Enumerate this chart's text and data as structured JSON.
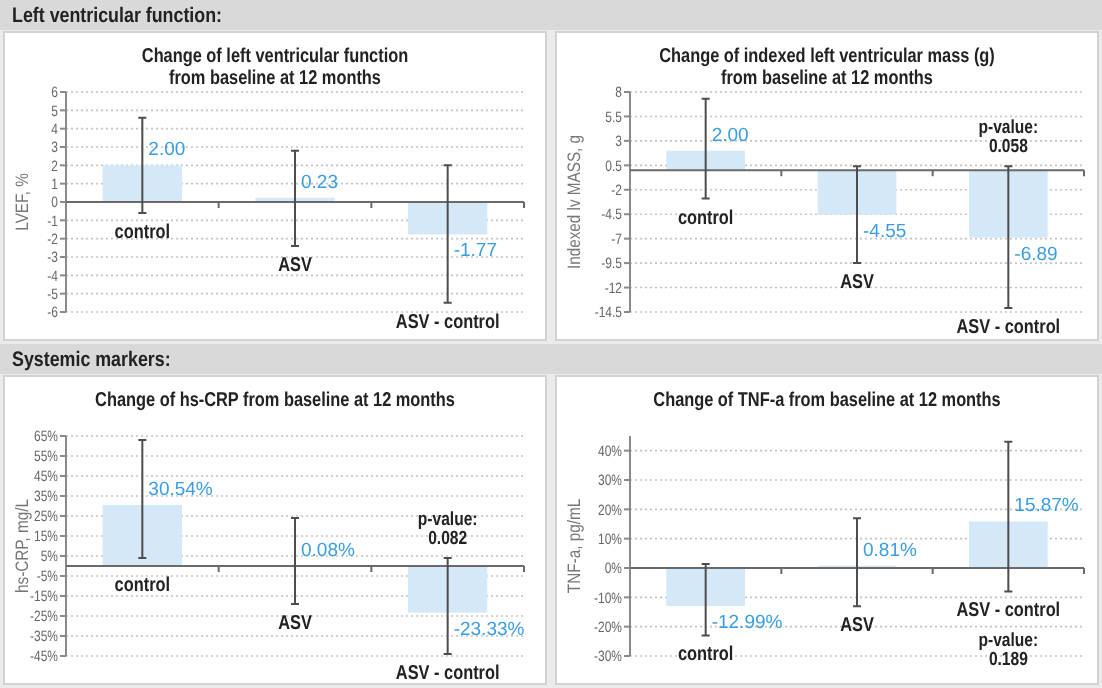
{
  "chart_data": [
    {
      "type": "other",
      "title": "Left ventricular function:"
    },
    {
      "type": "bar",
      "title": "Change of left ventricular function\nfrom baseline at 12 months",
      "ylabel": "LVEF, %",
      "categories": [
        "control",
        "ASV",
        "ASV - control"
      ],
      "values": [
        2.0,
        0.23,
        -1.77
      ],
      "value_labels": [
        "2.00",
        "0.23",
        "-1.77"
      ],
      "errors": [
        [
          -0.6,
          4.6
        ],
        [
          -2.4,
          2.8
        ],
        [
          -5.5,
          2.0
        ]
      ],
      "color": "#d5e8f8",
      "ylim": [
        -6,
        6
      ],
      "yticks": [
        6,
        5,
        4,
        3,
        2,
        1,
        0,
        -1,
        -2,
        -3,
        -4,
        -5,
        -6
      ],
      "grid": "y"
    },
    {
      "type": "bar",
      "title": "Change of indexed left ventricular mass (g)\nfrom baseline at 12 months",
      "ylabel": "Indexed lv MASS, g",
      "categories": [
        "control",
        "ASV",
        "ASV - control"
      ],
      "values": [
        2.0,
        -4.55,
        -6.89
      ],
      "value_labels": [
        "2.00",
        "-4.55",
        "-6.89"
      ],
      "errors": [
        [
          -2.9,
          7.3
        ],
        [
          -9.5,
          0.4
        ],
        [
          -14.1,
          0.4
        ]
      ],
      "color": "#d5e8f8",
      "ylim": [
        -14.5,
        8
      ],
      "yticks": [
        8,
        5.5,
        3,
        0.5,
        -2,
        -4.5,
        -7,
        -9.5,
        -12,
        -14.5
      ],
      "grid": "y",
      "annotations": [
        "p-value:\n0.058"
      ]
    },
    {
      "type": "other",
      "title": "Systemic markers:"
    },
    {
      "type": "bar",
      "title": "Change of hs-CRP from baseline at 12 months",
      "ylabel": "hs-CRP, mg/L",
      "categories": [
        "control",
        "ASV",
        "ASV - control"
      ],
      "values": [
        30.54,
        0.08,
        -23.33
      ],
      "value_labels": [
        "30.54%",
        "0.08%",
        "-23.33%"
      ],
      "errors": [
        [
          4,
          63
        ],
        [
          -19,
          24
        ],
        [
          -44,
          4
        ]
      ],
      "color": "#d5e8f8",
      "ylim": [
        -45,
        65
      ],
      "yticks": [
        {
          "value": 65,
          "label": "65%"
        },
        {
          "value": 55,
          "label": "55%"
        },
        {
          "value": 45,
          "label": "45%"
        },
        {
          "value": 35,
          "label": "35%"
        },
        {
          "value": 25,
          "label": "25%"
        },
        {
          "value": 15,
          "label": "15%"
        },
        {
          "value": 5,
          "label": "5%"
        },
        {
          "value": -5,
          "label": "-5%"
        },
        {
          "value": -15,
          "label": "-15%"
        },
        {
          "value": -25,
          "label": "-25%"
        },
        {
          "value": -35,
          "label": "-35%"
        },
        {
          "value": -45,
          "label": "-45%"
        }
      ],
      "grid": "y",
      "annotations": [
        "p-value:\n0.082"
      ]
    },
    {
      "type": "bar",
      "title": "Change of TNF-a from baseline at 12 months",
      "ylabel": "TNF-a, pg/mL",
      "categories": [
        "control",
        "ASV",
        "ASV - control"
      ],
      "values": [
        -12.99,
        0.81,
        15.87
      ],
      "value_labels": [
        "-12.99%",
        "0.81%",
        "15.87%"
      ],
      "errors": [
        [
          -23,
          1.4
        ],
        [
          -13,
          17
        ],
        [
          -8,
          43
        ]
      ],
      "color": "#d5e8f8",
      "ylim": [
        -30,
        45
      ],
      "yticks": [
        {
          "value": 40,
          "label": "40%"
        },
        {
          "value": 30,
          "label": "30%"
        },
        {
          "value": 20,
          "label": "20%"
        },
        {
          "value": 10,
          "label": "10%"
        },
        {
          "value": 0,
          "label": "0%"
        },
        {
          "value": -10,
          "label": "-10%"
        },
        {
          "value": -20,
          "label": "-20%"
        },
        {
          "value": -30,
          "label": "-30%"
        }
      ],
      "grid": "y",
      "annotations": [
        "p-value:\n0.189"
      ]
    }
  ]
}
